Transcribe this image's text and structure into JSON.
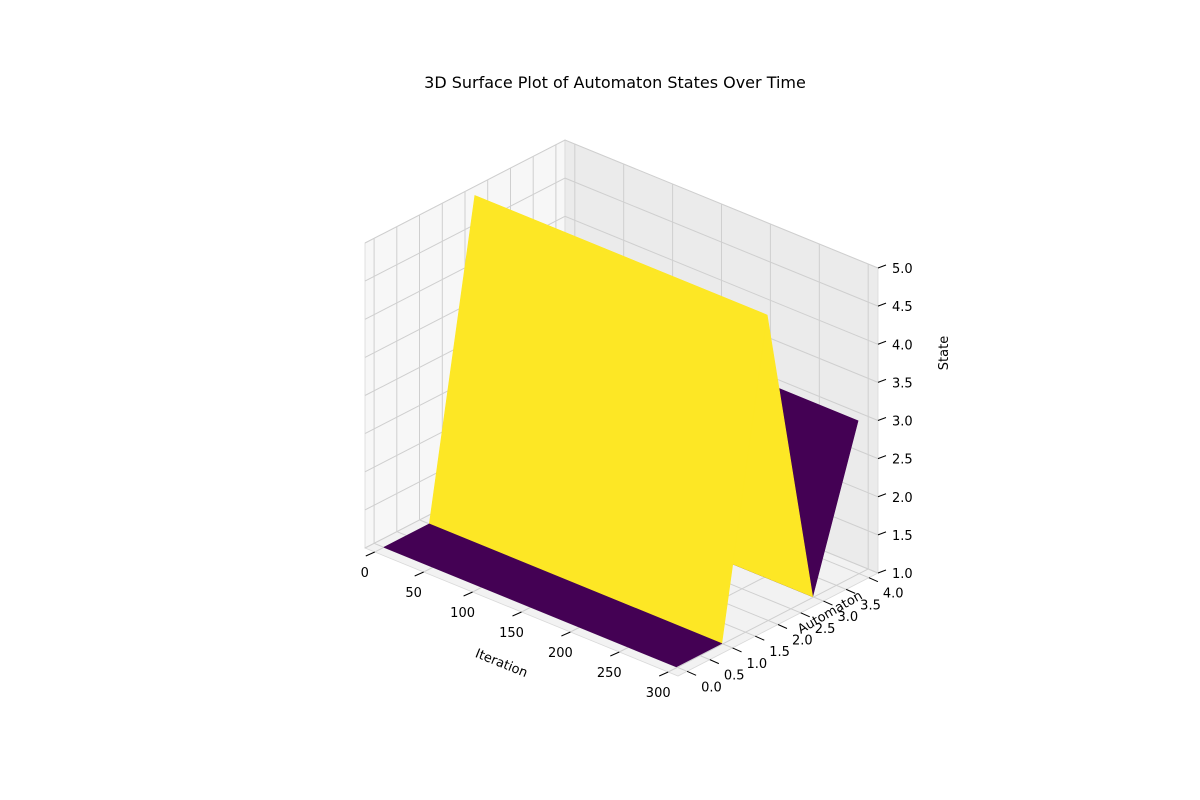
{
  "chart_data": {
    "type": "surface3d",
    "title": "3D Surface Plot of Automaton States Over Time",
    "xlabel": "Iteration",
    "ylabel": "Automaton",
    "zlabel": "State",
    "xlim": [
      -10,
      310
    ],
    "ylim": [
      -0.2,
      4.2
    ],
    "zlim": [
      1,
      5
    ],
    "x_ticks": [
      0,
      50,
      100,
      150,
      200,
      250,
      300
    ],
    "x_tick_labels": [
      "0",
      "50",
      "100",
      "150",
      "200",
      "250",
      "300"
    ],
    "y_ticks": [
      0.0,
      0.5,
      1.0,
      1.5,
      2.0,
      2.5,
      3.0,
      3.5,
      4.0
    ],
    "y_tick_labels": [
      "0.0",
      "0.5",
      "1.0",
      "1.5",
      "2.0",
      "2.5",
      "3.0",
      "3.5",
      "4.0"
    ],
    "z_ticks": [
      1.0,
      1.5,
      2.0,
      2.5,
      3.0,
      3.5,
      4.0,
      4.5,
      5.0
    ],
    "z_tick_labels": [
      "1.0",
      "1.5",
      "2.0",
      "2.5",
      "3.0",
      "3.5",
      "4.0",
      "4.5",
      "5.0"
    ],
    "x_range": [
      0,
      299
    ],
    "automata": [
      0,
      1,
      2,
      3,
      4
    ],
    "states": [
      1,
      1,
      5,
      1,
      3
    ],
    "colormap": "viridis",
    "colors": {
      "low": "#440154",
      "high": "#fde725",
      "pane_floor": "#f2f2f2",
      "pane_back": "#ebebeb",
      "pane_side": "#f7f7f7",
      "grid": "#cfcfcf"
    },
    "grid": true
  }
}
